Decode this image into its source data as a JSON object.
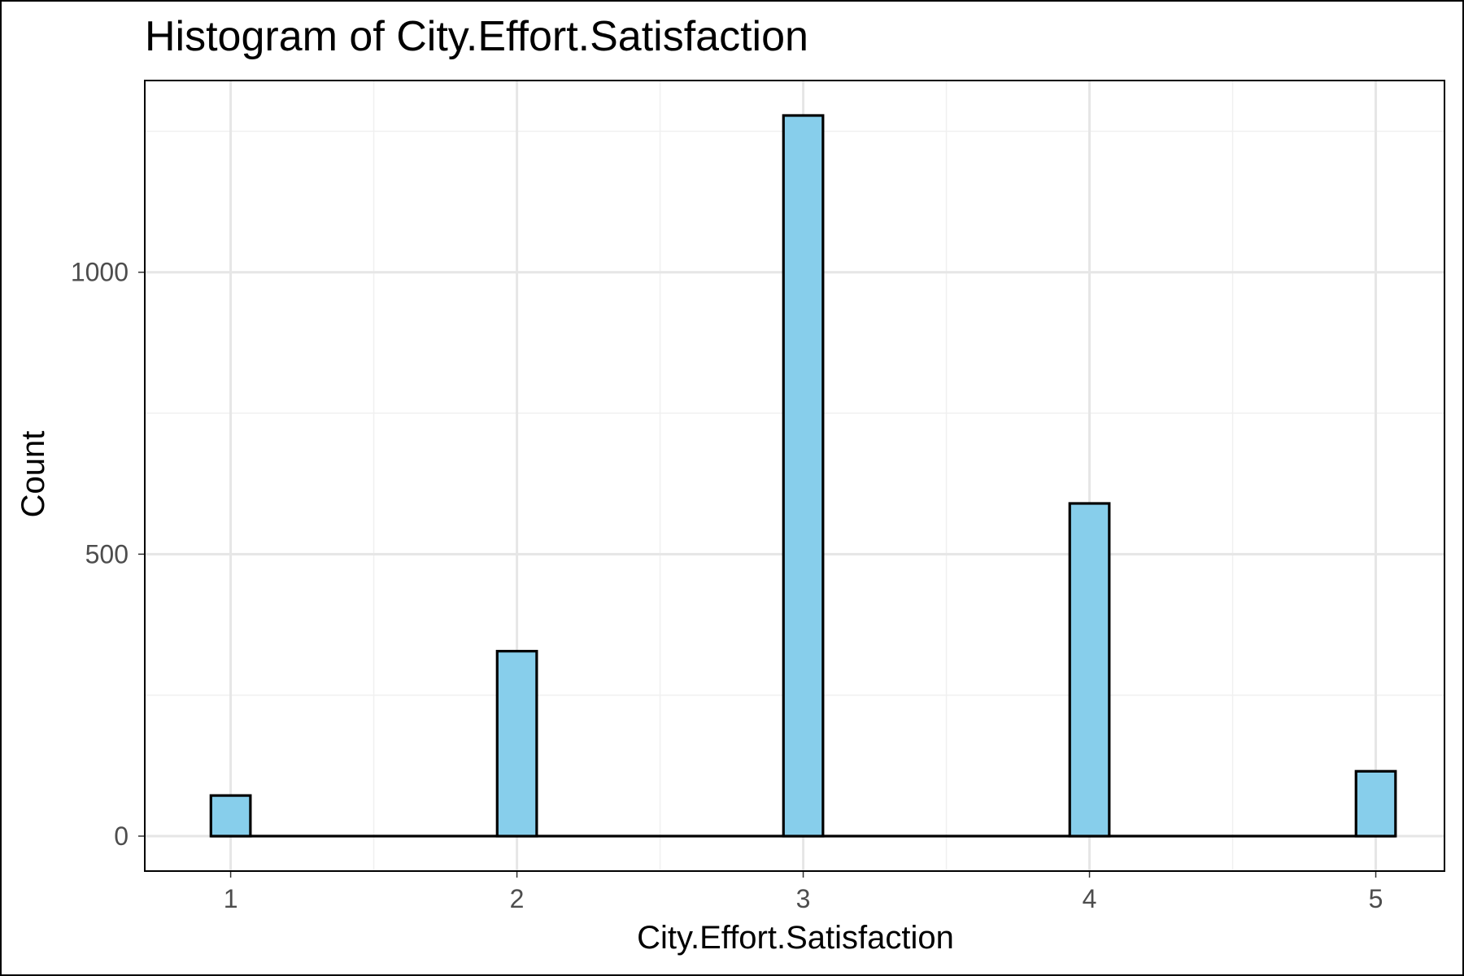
{
  "chart_data": {
    "type": "bar",
    "title": "Histogram of City.Effort.Satisfaction",
    "xlabel": "City.Effort.Satisfaction",
    "ylabel": "Count",
    "x": [
      1,
      2,
      3,
      4,
      5
    ],
    "values": [
      72,
      328,
      1278,
      590,
      115
    ],
    "xlim": [
      0.7,
      5.24
    ],
    "ylim": [
      -62,
      1340
    ],
    "xticks": [
      1,
      2,
      3,
      4,
      5
    ],
    "xtick_labels": [
      "1",
      "2",
      "3",
      "4",
      "5"
    ],
    "yticks": [
      0,
      500,
      1000
    ],
    "ytick_labels": [
      "0",
      "500",
      "1000"
    ],
    "y_minor_ticks": [
      250,
      750,
      1250
    ],
    "x_minor_ticks": [
      1.5,
      2.5,
      3.5,
      4.5
    ],
    "bin_width": 0.138,
    "grid": true,
    "legend": "none",
    "colors": {
      "bar_fill": "#87CEEB",
      "bar_outline": "#000000"
    }
  }
}
